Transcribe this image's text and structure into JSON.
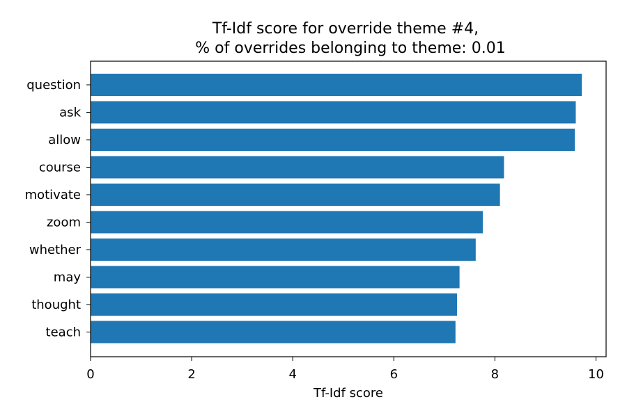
{
  "chart_data": {
    "type": "bar",
    "orientation": "horizontal",
    "title": "Tf-Idf score for override theme #4,",
    "subtitle": "% of overrides belonging to theme: 0.01",
    "xlabel": "Tf-Idf score",
    "ylabel": "",
    "xlim": [
      0,
      10.2
    ],
    "xticks": [
      0,
      2,
      4,
      6,
      8,
      10
    ],
    "categories": [
      "question",
      "ask",
      "allow",
      "course",
      "motivate",
      "zoom",
      "whether",
      "may",
      "thought",
      "teach"
    ],
    "values": [
      9.72,
      9.6,
      9.58,
      8.18,
      8.1,
      7.76,
      7.62,
      7.3,
      7.25,
      7.22
    ],
    "bar_color": "#1f77b4",
    "grid": false
  }
}
